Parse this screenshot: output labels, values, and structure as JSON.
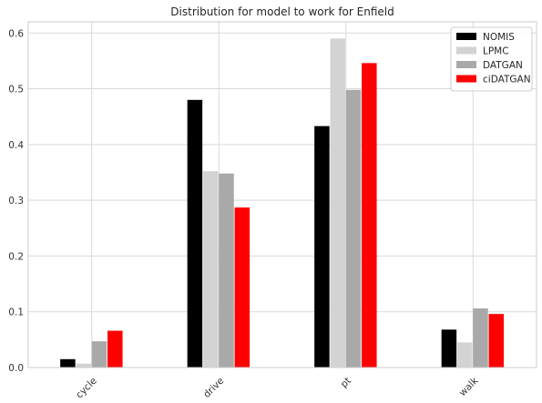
{
  "chart_data": {
    "type": "bar",
    "title": "Distribution for model to work for Enfield",
    "xlabel": "",
    "ylabel": "",
    "categories": [
      "cycle",
      "drive",
      "pt",
      "walk"
    ],
    "ylim": [
      0,
      0.62
    ],
    "yticks": [
      "0.0",
      "0.1",
      "0.2",
      "0.3",
      "0.4",
      "0.5",
      "0.6"
    ],
    "grid": true,
    "legend_position": "top-right",
    "series": [
      {
        "name": "NOMIS",
        "color": "#000000",
        "values": [
          0.015,
          0.48,
          0.433,
          0.068
        ]
      },
      {
        "name": "LPMC",
        "color": "#d3d3d3",
        "values": [
          0.007,
          0.352,
          0.59,
          0.045
        ]
      },
      {
        "name": "DATGAN",
        "color": "#a9a9a9",
        "values": [
          0.047,
          0.348,
          0.498,
          0.106
        ]
      },
      {
        "name": "ciDATGAN",
        "color": "#ff0000",
        "values": [
          0.066,
          0.287,
          0.546,
          0.096
        ]
      }
    ]
  }
}
